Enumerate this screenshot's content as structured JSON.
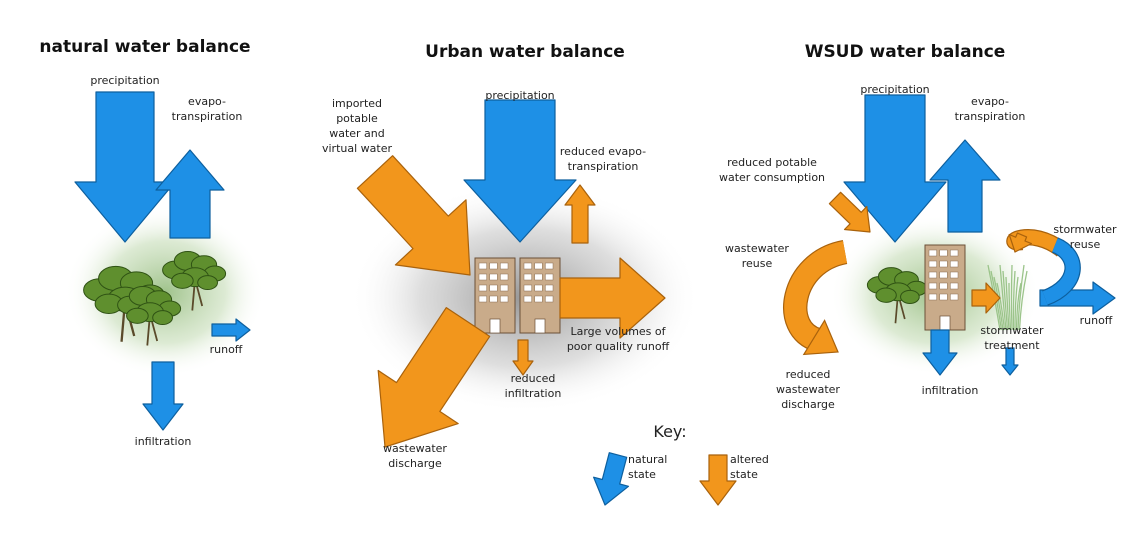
{
  "panels": [
    {
      "title": "natural water balance",
      "labels": [
        {
          "lines": [
            "precipitation"
          ]
        },
        {
          "lines": [
            "evapo-",
            "transpiration"
          ]
        },
        {
          "lines": [
            "runoff"
          ]
        },
        {
          "lines": [
            "infiltration"
          ]
        }
      ]
    },
    {
      "title": "Urban water balance",
      "labels": [
        {
          "lines": [
            "imported",
            "potable",
            "water and",
            "virtual water"
          ]
        },
        {
          "lines": [
            "precipitation"
          ]
        },
        {
          "lines": [
            "reduced evapo-",
            "transpiration"
          ]
        },
        {
          "lines": [
            "Large volumes of",
            "poor quality runoff"
          ]
        },
        {
          "lines": [
            "reduced",
            "infiltration"
          ]
        },
        {
          "lines": [
            "wastewater",
            "discharge"
          ]
        }
      ]
    },
    {
      "title": "WSUD water balance",
      "labels": [
        {
          "lines": [
            "precipitation"
          ]
        },
        {
          "lines": [
            "evapo-",
            "transpiration"
          ]
        },
        {
          "lines": [
            "reduced potable",
            "water consumption"
          ]
        },
        {
          "lines": [
            "wastewater",
            "reuse"
          ]
        },
        {
          "lines": [
            "stormwater",
            "reuse"
          ]
        },
        {
          "lines": [
            "runoff"
          ]
        },
        {
          "lines": [
            "stormwater",
            "treatment"
          ]
        },
        {
          "lines": [
            "infiltration"
          ]
        },
        {
          "lines": [
            "reduced",
            "wastewater",
            "discharge"
          ]
        }
      ]
    }
  ],
  "key": {
    "title": "Key:",
    "items": [
      {
        "lines": [
          "natural",
          "state"
        ]
      },
      {
        "lines": [
          "altered",
          "state"
        ]
      }
    ]
  }
}
